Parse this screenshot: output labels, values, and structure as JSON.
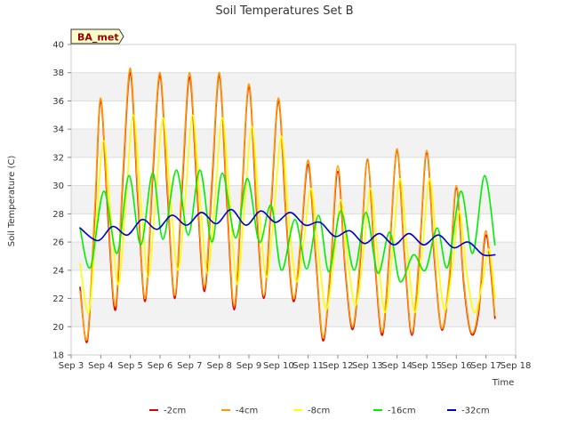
{
  "chart_data": {
    "type": "line",
    "title": "Soil Temperatures Set B",
    "xlabel": "Time",
    "ylabel": "Soil Temperature (C)",
    "badge": "BA_met",
    "xlim": [
      3,
      18
    ],
    "ylim": [
      18,
      40
    ],
    "x_ticks": [
      {
        "value": 3,
        "label": "Sep 3"
      },
      {
        "value": 4,
        "label": "Sep 4"
      },
      {
        "value": 5,
        "label": "Sep 5"
      },
      {
        "value": 6,
        "label": "Sep 6"
      },
      {
        "value": 7,
        "label": "Sep 7"
      },
      {
        "value": 8,
        "label": "Sep 8"
      },
      {
        "value": 9,
        "label": "Sep 9"
      },
      {
        "value": 10,
        "label": "Sep 10"
      },
      {
        "value": 11,
        "label": "Sep 11"
      },
      {
        "value": 12,
        "label": "Sep 12"
      },
      {
        "value": 13,
        "label": "Sep 13"
      },
      {
        "value": 14,
        "label": "Sep 14"
      },
      {
        "value": 15,
        "label": "Sep 15"
      },
      {
        "value": 16,
        "label": "Sep 16"
      },
      {
        "value": 17,
        "label": "Sep 17"
      },
      {
        "value": 18,
        "label": "Sep 18"
      }
    ],
    "y_ticks": [
      18,
      20,
      22,
      24,
      26,
      28,
      30,
      32,
      34,
      36,
      38,
      40
    ],
    "grid": "horizontal bands",
    "legend_position": "bottom",
    "series": [
      {
        "name": "-2cm",
        "color": "#dd0000",
        "x": [
          3.3,
          3.55,
          3.8,
          4.0,
          4.25,
          4.5,
          4.75,
          5.0,
          5.25,
          5.5,
          5.75,
          6.0,
          6.25,
          6.5,
          6.75,
          7.0,
          7.25,
          7.5,
          7.75,
          8.0,
          8.25,
          8.5,
          8.75,
          9.0,
          9.25,
          9.5,
          9.75,
          10.0,
          10.25,
          10.5,
          10.75,
          11.0,
          11.25,
          11.5,
          11.75,
          12.0,
          12.25,
          12.5,
          12.75,
          13.0,
          13.25,
          13.5,
          13.75,
          14.0,
          14.25,
          14.5,
          14.75,
          15.0,
          15.25,
          15.5,
          15.75,
          16.0,
          16.25,
          16.5,
          16.75,
          17.0,
          17.3
        ],
        "y": [
          22.8,
          19.0,
          28.0,
          36.0,
          27.5,
          21.2,
          30.5,
          38.0,
          29.0,
          21.8,
          30.5,
          37.8,
          29.5,
          22.0,
          30.0,
          37.7,
          29.5,
          22.5,
          30.0,
          37.8,
          29.0,
          21.2,
          28.8,
          37.0,
          28.5,
          22.0,
          28.6,
          36.0,
          27.8,
          21.8,
          26.0,
          31.5,
          25.0,
          19.0,
          24.0,
          31.0,
          24.0,
          19.8,
          24.5,
          31.8,
          24.5,
          19.4,
          25.5,
          32.5,
          25.0,
          19.4,
          25.0,
          32.3,
          25.0,
          19.8,
          23.0,
          29.8,
          23.0,
          19.5,
          21.0,
          26.5,
          20.6
        ]
      },
      {
        "name": "-4cm",
        "color": "#ff9900",
        "x": [
          3.3,
          3.55,
          3.8,
          4.0,
          4.25,
          4.5,
          4.75,
          5.0,
          5.25,
          5.5,
          5.75,
          6.0,
          6.25,
          6.5,
          6.75,
          7.0,
          7.25,
          7.5,
          7.75,
          8.0,
          8.25,
          8.5,
          8.75,
          9.0,
          9.25,
          9.5,
          9.75,
          10.0,
          10.25,
          10.5,
          10.75,
          11.0,
          11.25,
          11.5,
          11.75,
          12.0,
          12.25,
          12.5,
          12.75,
          13.0,
          13.25,
          13.5,
          13.75,
          14.0,
          14.25,
          14.5,
          14.75,
          15.0,
          15.25,
          15.5,
          15.75,
          16.0,
          16.25,
          16.5,
          16.75,
          17.0,
          17.3
        ],
        "y": [
          22.5,
          19.2,
          28.5,
          36.2,
          28.0,
          21.5,
          31.0,
          38.3,
          29.5,
          22.0,
          31.0,
          38.0,
          30.0,
          22.2,
          30.5,
          38.0,
          30.0,
          22.8,
          30.5,
          38.0,
          29.5,
          21.5,
          29.2,
          37.2,
          29.0,
          22.2,
          29.0,
          36.2,
          28.2,
          22.0,
          26.3,
          31.8,
          25.3,
          19.2,
          24.3,
          31.4,
          24.3,
          20.0,
          24.8,
          31.9,
          24.8,
          19.6,
          25.8,
          32.6,
          25.3,
          19.6,
          25.3,
          32.5,
          25.3,
          19.9,
          23.3,
          30.0,
          23.3,
          19.6,
          21.3,
          26.8,
          20.8
        ]
      },
      {
        "name": "-8cm",
        "color": "#ffff00",
        "x": [
          3.3,
          3.6,
          3.85,
          4.1,
          4.35,
          4.6,
          4.85,
          5.1,
          5.35,
          5.6,
          5.85,
          6.1,
          6.35,
          6.6,
          6.85,
          7.1,
          7.35,
          7.6,
          7.85,
          8.1,
          8.35,
          8.6,
          8.85,
          9.1,
          9.35,
          9.6,
          9.85,
          10.1,
          10.35,
          10.6,
          10.85,
          11.1,
          11.35,
          11.6,
          11.85,
          12.1,
          12.35,
          12.6,
          12.85,
          13.1,
          13.35,
          13.6,
          13.85,
          14.1,
          14.35,
          14.6,
          14.85,
          15.1,
          15.35,
          15.6,
          15.85,
          16.1,
          16.35,
          16.6,
          16.85,
          17.1,
          17.3
        ],
        "y": [
          24.5,
          21.0,
          27.5,
          33.2,
          27.5,
          23.0,
          29.0,
          35.0,
          29.0,
          23.5,
          29.0,
          34.8,
          29.2,
          24.0,
          29.0,
          35.0,
          29.0,
          23.8,
          29.0,
          34.8,
          29.0,
          23.0,
          28.5,
          34.2,
          28.2,
          23.5,
          28.2,
          33.5,
          27.5,
          23.2,
          26.0,
          29.8,
          25.2,
          21.2,
          24.5,
          29.0,
          24.5,
          21.5,
          25.0,
          29.8,
          25.0,
          21.0,
          25.5,
          30.5,
          25.3,
          21.0,
          25.5,
          30.5,
          25.2,
          21.2,
          24.0,
          28.2,
          23.8,
          21.0,
          22.8,
          25.5,
          22.0
        ]
      },
      {
        "name": "-16cm",
        "color": "#00ee00",
        "x": [
          3.3,
          3.65,
          4.1,
          4.55,
          4.95,
          5.35,
          5.75,
          6.1,
          6.55,
          6.95,
          7.35,
          7.75,
          8.1,
          8.55,
          8.95,
          9.35,
          9.75,
          10.1,
          10.55,
          10.95,
          11.35,
          11.7,
          12.1,
          12.55,
          12.95,
          13.35,
          13.75,
          14.1,
          14.55,
          14.95,
          15.35,
          15.7,
          16.15,
          16.55,
          16.95,
          17.3
        ],
        "y": [
          27.0,
          24.2,
          29.6,
          25.2,
          30.7,
          25.8,
          30.9,
          26.2,
          31.1,
          26.5,
          31.1,
          26.0,
          30.9,
          26.3,
          30.5,
          26.0,
          28.6,
          24.0,
          27.6,
          24.1,
          27.9,
          23.9,
          28.2,
          24.0,
          28.1,
          23.8,
          26.7,
          23.2,
          25.1,
          24.0,
          27.0,
          24.2,
          29.6,
          25.2,
          30.7,
          25.8
        ]
      },
      {
        "name": "-32cm",
        "color": "#0000cc",
        "x": [
          3.3,
          3.9,
          4.4,
          4.9,
          5.4,
          5.9,
          6.4,
          6.9,
          7.4,
          7.9,
          8.4,
          8.9,
          9.4,
          9.9,
          10.4,
          10.9,
          11.4,
          11.9,
          12.4,
          12.9,
          13.4,
          13.9,
          14.4,
          14.9,
          15.4,
          15.9,
          16.4,
          16.9,
          17.3
        ],
        "y": [
          27.0,
          26.1,
          27.1,
          26.5,
          27.6,
          26.9,
          27.9,
          27.2,
          28.1,
          27.3,
          28.3,
          27.2,
          28.2,
          27.4,
          28.1,
          27.2,
          27.4,
          26.4,
          26.8,
          25.9,
          26.6,
          25.8,
          26.6,
          25.8,
          26.5,
          25.6,
          26.0,
          25.1,
          25.1
        ]
      }
    ]
  }
}
